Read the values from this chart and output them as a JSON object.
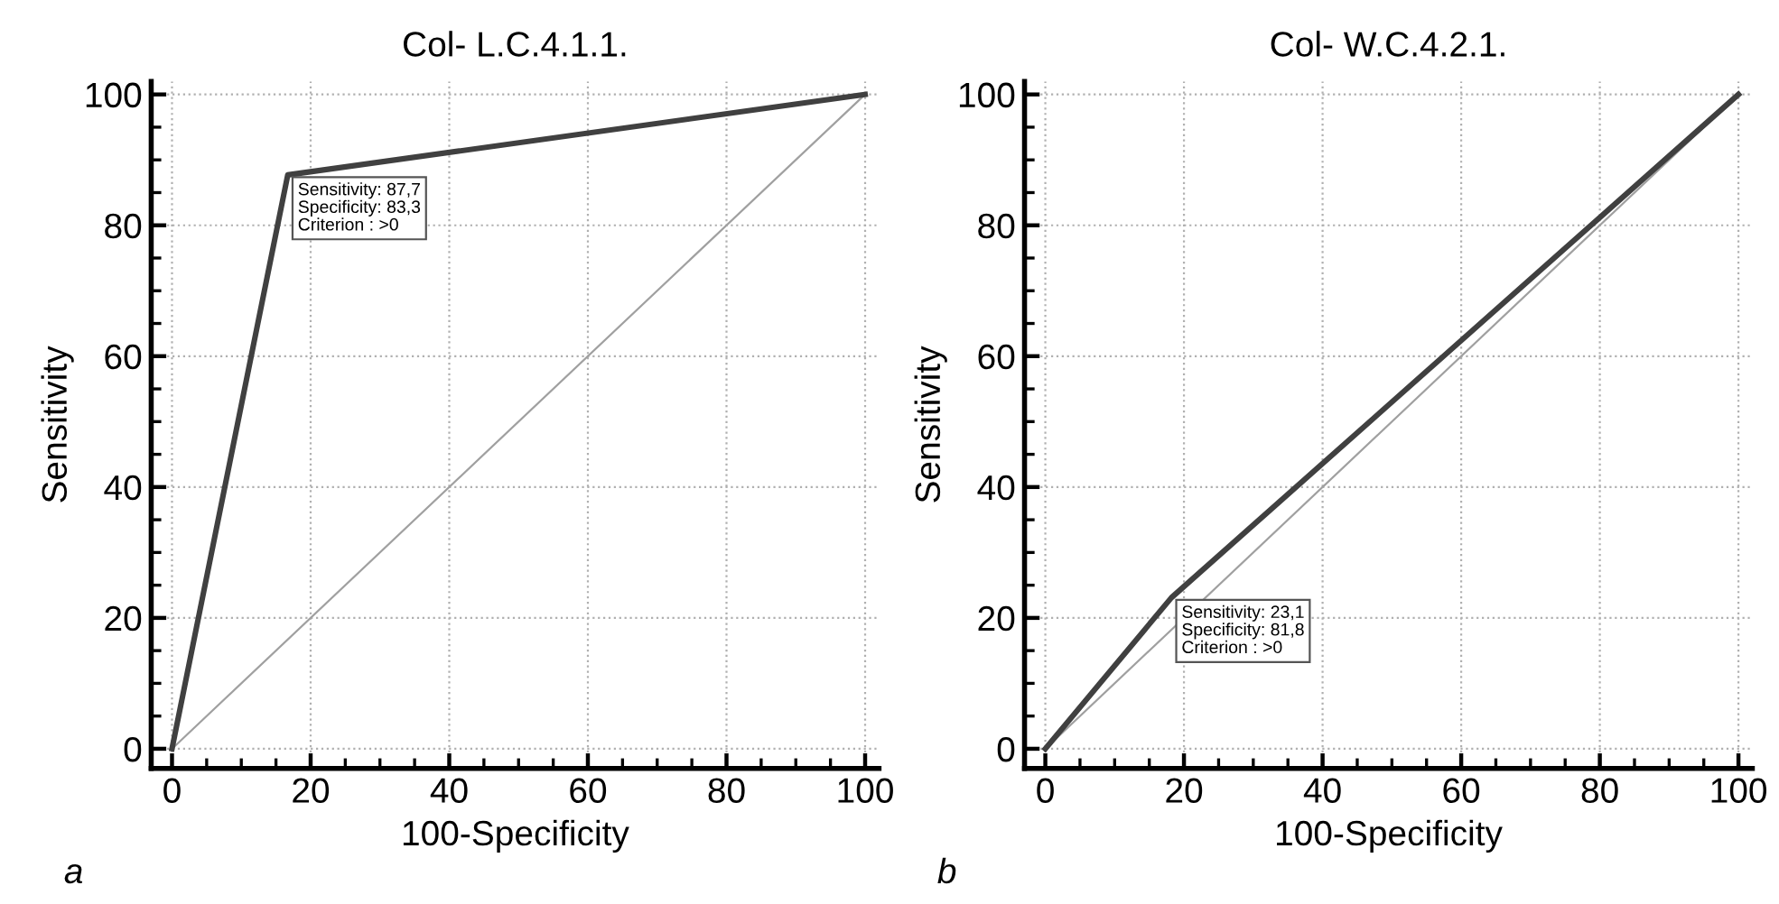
{
  "chart_data": [
    {
      "type": "line",
      "title": "Col- L.C.4.1.1.",
      "xlabel": "100-Specificity",
      "ylabel": "Sensitivity",
      "xlim": [
        -3,
        102
      ],
      "ylim": [
        -3,
        102
      ],
      "xticks": [
        0,
        20,
        40,
        60,
        80,
        100
      ],
      "yticks": [
        0,
        20,
        40,
        60,
        80,
        100
      ],
      "grid": true,
      "marker": "none",
      "series": [
        {
          "x": [
            0,
            16.7,
            100
          ],
          "values": [
            0,
            87.7,
            100
          ],
          "color": "#404040",
          "line_style": "solid"
        },
        {
          "x": [
            0,
            100
          ],
          "values": [
            0,
            100
          ],
          "color": "#a0a0a0",
          "line_style": "solid"
        }
      ],
      "annotations": [
        {
          "text": "Sensitivity: 87,7\nSpecificity: 83,3\nCriterion : >0",
          "x": 16.7,
          "y": 87.7
        },
        "a"
      ]
    },
    {
      "type": "line",
      "title": "Col- W.C.4.2.1.",
      "xlabel": "100-Specificity",
      "ylabel": "Sensitivity",
      "xlim": [
        -3,
        102
      ],
      "ylim": [
        -3,
        102
      ],
      "xticks": [
        0,
        20,
        40,
        60,
        80,
        100
      ],
      "yticks": [
        0,
        20,
        40,
        60,
        80,
        100
      ],
      "grid": true,
      "marker": "none",
      "series": [
        {
          "x": [
            0,
            18.2,
            100
          ],
          "values": [
            0,
            23.1,
            100
          ],
          "color": "#404040",
          "line_style": "solid"
        },
        {
          "x": [
            0,
            100
          ],
          "values": [
            0,
            100
          ],
          "color": "#a0a0a0",
          "line_style": "solid"
        }
      ],
      "annotations": [
        {
          "text": "Sensitivity: 23,1\nSpecificity: 81,8\nCriterion : >0",
          "x": 18.2,
          "y": 23.1
        },
        "b"
      ]
    }
  ]
}
